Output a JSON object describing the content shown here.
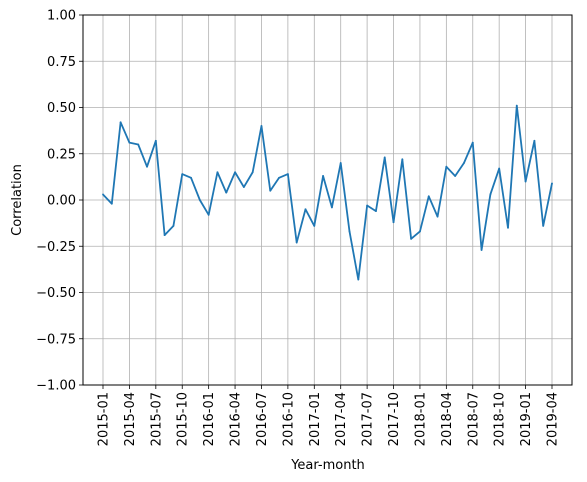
{
  "chart_data": {
    "type": "line",
    "title": "",
    "xlabel": "Year-month",
    "ylabel": "Correlation",
    "ylim": [
      -1.0,
      1.0
    ],
    "yticks": [
      "−1.00",
      "−0.75",
      "−0.50",
      "−0.25",
      "0.00",
      "0.25",
      "0.50",
      "0.75",
      "1.00"
    ],
    "xticks": [
      "2015-01",
      "2015-04",
      "2015-07",
      "2015-10",
      "2016-01",
      "2016-04",
      "2016-07",
      "2016-10",
      "2017-01",
      "2017-04",
      "2017-07",
      "2017-10",
      "2018-01",
      "2018-04",
      "2018-07",
      "2018-10",
      "2019-01",
      "2019-04"
    ],
    "grid": true,
    "x": [
      "2015-01",
      "2015-02",
      "2015-03",
      "2015-04",
      "2015-05",
      "2015-06",
      "2015-07",
      "2015-08",
      "2015-09",
      "2015-10",
      "2015-11",
      "2015-12",
      "2016-01",
      "2016-02",
      "2016-03",
      "2016-04",
      "2016-05",
      "2016-06",
      "2016-07",
      "2016-08",
      "2016-09",
      "2016-10",
      "2016-11",
      "2016-12",
      "2017-01",
      "2017-02",
      "2017-03",
      "2017-04",
      "2017-05",
      "2017-06",
      "2017-07",
      "2017-08",
      "2017-09",
      "2017-10",
      "2017-11",
      "2017-12",
      "2018-01",
      "2018-02",
      "2018-03",
      "2018-04",
      "2018-05",
      "2018-06",
      "2018-07",
      "2018-08",
      "2018-09",
      "2018-10",
      "2018-11",
      "2018-12",
      "2019-01",
      "2019-02",
      "2019-03",
      "2019-04"
    ],
    "series": [
      {
        "color": "#1f77b4",
        "values": [
          0.03,
          -0.02,
          0.42,
          0.31,
          0.3,
          0.18,
          0.32,
          -0.19,
          -0.14,
          0.14,
          0.12,
          0.0,
          -0.08,
          0.15,
          0.04,
          0.15,
          0.07,
          0.15,
          0.4,
          0.05,
          0.12,
          0.14,
          -0.23,
          -0.05,
          -0.14,
          0.13,
          -0.04,
          0.2,
          -0.17,
          -0.43,
          -0.03,
          -0.06,
          0.23,
          -0.12,
          0.22,
          -0.21,
          -0.17,
          0.02,
          -0.09,
          0.18,
          0.13,
          0.2,
          0.31,
          -0.27,
          0.03,
          0.17,
          -0.15,
          0.51,
          0.1,
          0.32,
          -0.14,
          0.09
        ]
      }
    ]
  }
}
